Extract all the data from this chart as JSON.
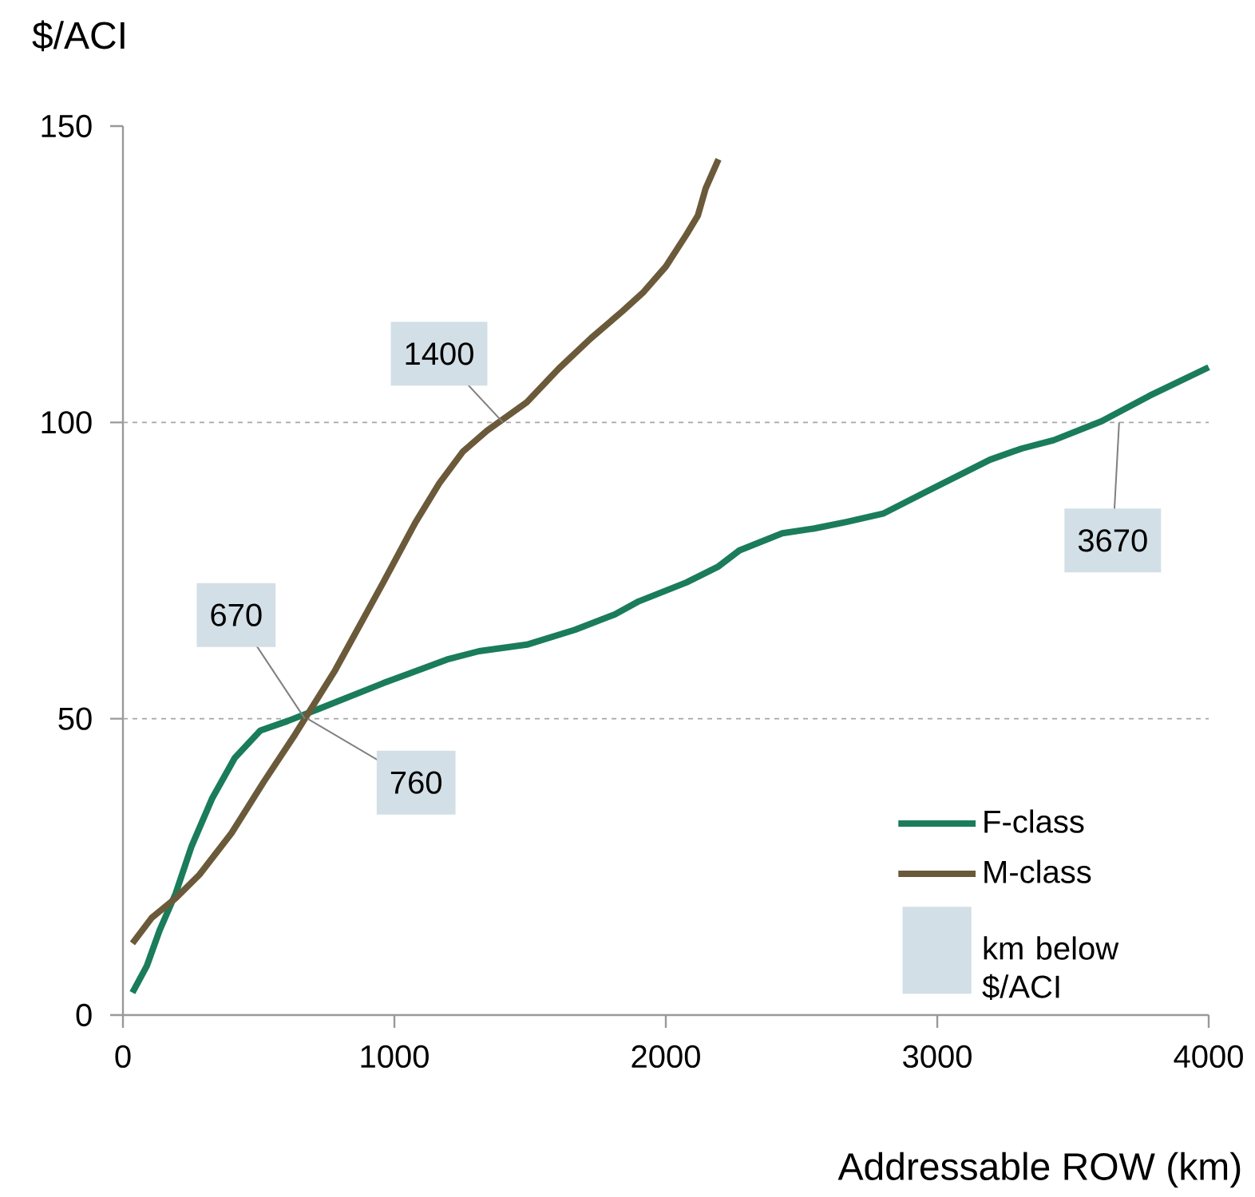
{
  "chart_data": {
    "type": "line",
    "xlabel": "Addressable ROW (km)",
    "ylabel": "$/ACI",
    "xlim": [
      0,
      4000
    ],
    "ylim": [
      0,
      150
    ],
    "xticks": [
      0,
      1000,
      2000,
      3000,
      4000
    ],
    "yticks": [
      0,
      50,
      100,
      150
    ],
    "grid": "y",
    "legend": "bottom right",
    "series": [
      {
        "name": "F-class",
        "color": "#1a7c5a",
        "x": [
          35,
          88,
          135,
          194,
          253,
          329,
          412,
          506,
          606,
          724,
          959,
          1194,
          1312,
          1488,
          1665,
          1812,
          1900,
          2076,
          2194,
          2271,
          2429,
          2547,
          2665,
          2800,
          2959,
          3194,
          3312,
          3429,
          3606,
          3782,
          4000
        ],
        "values": [
          3.8,
          8.3,
          14.3,
          20.5,
          28.5,
          36.6,
          43.4,
          48,
          49.6,
          51.7,
          56,
          60,
          61.4,
          62.5,
          65,
          67.6,
          69.8,
          73,
          75.7,
          78.4,
          81.3,
          82.1,
          83.2,
          84.6,
          88.3,
          93.7,
          95.6,
          97,
          100.2,
          104.5,
          109.3
        ]
      },
      {
        "name": "M-class",
        "color": "#6b5a3a",
        "x": [
          35,
          106,
          194,
          282,
          400,
          518,
          635,
          782,
          959,
          1076,
          1165,
          1253,
          1341,
          1488,
          1606,
          1724,
          1841,
          1918,
          2000,
          2076,
          2118,
          2147,
          2194
        ],
        "values": [
          12.1,
          16.4,
          19.7,
          23.7,
          30.7,
          39.3,
          47.4,
          58.2,
          73,
          83,
          89.7,
          95.1,
          98.6,
          103.4,
          109.1,
          114.2,
          118.8,
          122,
          126.3,
          131.7,
          134.9,
          139.5,
          144.4
        ]
      }
    ],
    "annotations": [
      {
        "text": "1400",
        "x": 1400,
        "y": 100
      },
      {
        "text": "670",
        "x": 670,
        "y": 50
      },
      {
        "text": "760",
        "x": 680,
        "y": 50
      },
      {
        "text": "3670",
        "x": 3670,
        "y": 100
      },
      "km below $/ACI"
    ]
  }
}
